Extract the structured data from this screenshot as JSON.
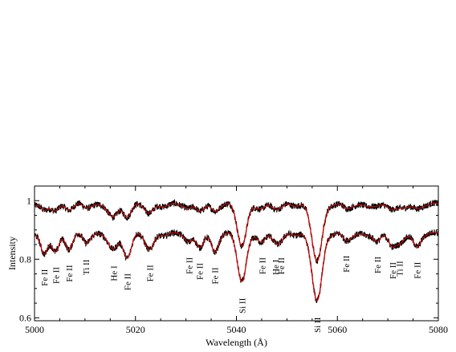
{
  "chart_data": {
    "type": "line",
    "title": "",
    "xlabel": "Wavelength (Å)",
    "ylabel": "Intensity",
    "xlim": [
      5000,
      5080
    ],
    "ylim": [
      0.59,
      1.05
    ],
    "x_ticks": [
      5000,
      5020,
      5040,
      5060,
      5080
    ],
    "y_ticks": [
      0.6,
      0.8,
      1.0
    ],
    "y_tick_labels": [
      "0.6",
      "0.8",
      "1"
    ],
    "grid": false,
    "colors": {
      "observed": "#000000",
      "model": "#d40000",
      "axes": "#000000"
    },
    "series": [
      {
        "component": "upper",
        "continuum": 0.985
      },
      {
        "component": "lower",
        "continuum": 0.885
      }
    ],
    "line_ids": [
      {
        "label": "Fe II",
        "x": 5001.9
      },
      {
        "label": "Fe II",
        "x": 5004.2
      },
      {
        "label": "Fe II",
        "x": 5006.8
      },
      {
        "label": "Ti II",
        "x": 5010.2
      },
      {
        "label": "He I",
        "x": 5015.7
      },
      {
        "label": "Fe II",
        "x": 5018.4
      },
      {
        "label": "Fe II",
        "x": 5022.8
      },
      {
        "label": "Fe II",
        "x": 5030.6
      },
      {
        "label": "Fe II",
        "x": 5032.7
      },
      {
        "label": "Fe II",
        "x": 5035.7
      },
      {
        "label": "Si II",
        "x": 5041.1
      },
      {
        "label": "Fe II",
        "x": 5045.1
      },
      {
        "label": "He I",
        "x": 5047.7
      },
      {
        "label": "Fe II",
        "x": 5048.8
      },
      {
        "label": "Si II",
        "x": 5056.0
      },
      {
        "label": "Fe II",
        "x": 5061.7
      },
      {
        "label": "Fe II",
        "x": 5067.9
      },
      {
        "label": "Fe II",
        "x": 5070.9
      },
      {
        "label": "Ti II",
        "x": 5072.3
      },
      {
        "label": "Fe II",
        "x": 5075.8
      }
    ],
    "absorption_lines": [
      {
        "x": 5001.9,
        "upper_depth": 0.02,
        "lower_depth": 0.07,
        "width": 0.7
      },
      {
        "x": 5004.2,
        "upper_depth": 0.015,
        "lower_depth": 0.055,
        "width": 0.7
      },
      {
        "x": 5006.8,
        "upper_depth": 0.015,
        "lower_depth": 0.05,
        "width": 0.7
      },
      {
        "x": 5010.2,
        "upper_depth": 0.01,
        "lower_depth": 0.03,
        "width": 0.7
      },
      {
        "x": 5015.7,
        "upper_depth": 0.04,
        "lower_depth": 0.05,
        "width": 0.9
      },
      {
        "x": 5018.4,
        "upper_depth": 0.04,
        "lower_depth": 0.08,
        "width": 0.8
      },
      {
        "x": 5022.8,
        "upper_depth": 0.025,
        "lower_depth": 0.05,
        "width": 0.8
      },
      {
        "x": 5030.6,
        "upper_depth": 0.015,
        "lower_depth": 0.03,
        "width": 0.7
      },
      {
        "x": 5032.7,
        "upper_depth": 0.015,
        "lower_depth": 0.04,
        "width": 0.7
      },
      {
        "x": 5035.7,
        "upper_depth": 0.02,
        "lower_depth": 0.06,
        "width": 0.7
      },
      {
        "x": 5041.1,
        "upper_depth": 0.14,
        "lower_depth": 0.16,
        "width": 0.9
      },
      {
        "x": 5045.1,
        "upper_depth": 0.01,
        "lower_depth": 0.025,
        "width": 0.7
      },
      {
        "x": 5047.7,
        "upper_depth": 0.01,
        "lower_depth": 0.02,
        "width": 0.7
      },
      {
        "x": 5048.8,
        "upper_depth": 0.01,
        "lower_depth": 0.025,
        "width": 0.7
      },
      {
        "x": 5056.0,
        "upper_depth": 0.19,
        "lower_depth": 0.225,
        "width": 1.0
      },
      {
        "x": 5061.7,
        "upper_depth": 0.01,
        "lower_depth": 0.02,
        "width": 0.7
      },
      {
        "x": 5067.9,
        "upper_depth": 0.01,
        "lower_depth": 0.03,
        "width": 0.7
      },
      {
        "x": 5070.9,
        "upper_depth": 0.015,
        "lower_depth": 0.04,
        "width": 0.7
      },
      {
        "x": 5072.3,
        "upper_depth": 0.01,
        "lower_depth": 0.03,
        "width": 0.7
      },
      {
        "x": 5075.8,
        "upper_depth": 0.015,
        "lower_depth": 0.045,
        "width": 0.7
      }
    ]
  }
}
